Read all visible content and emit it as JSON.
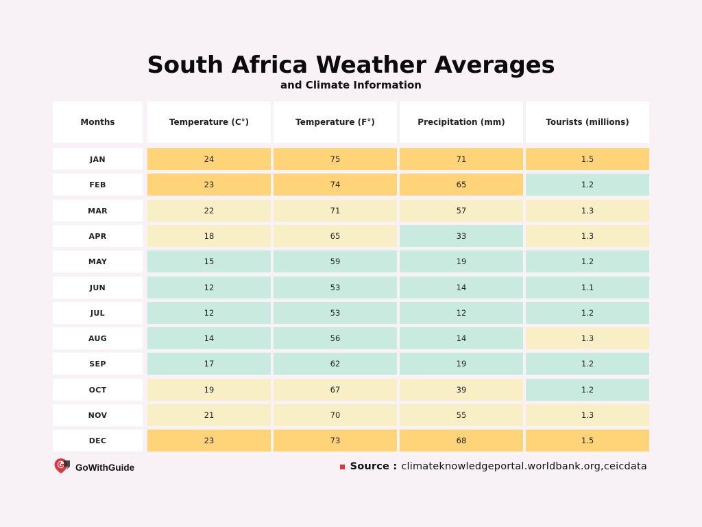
{
  "title": "South Africa Weather Averages",
  "subtitle": "and Climate Information",
  "colors": {
    "orange": "#ffd479",
    "yellow": "#f8efc6",
    "mint": "#c9eadf",
    "header_bg": "#ffffff",
    "page_bg": "#f8f2f6",
    "logo_red": "#d9383f"
  },
  "chart_data": {
    "type": "table",
    "columns": [
      "Months",
      "Temperature (C°)",
      "Temperature (F°)",
      "Precipitation (mm)",
      "Tourists (millions)"
    ],
    "rows": [
      {
        "month": "JAN",
        "values": [
          "24",
          "75",
          "71",
          "1.5"
        ],
        "colors": [
          "orange",
          "orange",
          "orange",
          "orange"
        ]
      },
      {
        "month": "FEB",
        "values": [
          "23",
          "74",
          "65",
          "1.2"
        ],
        "colors": [
          "orange",
          "orange",
          "orange",
          "mint"
        ]
      },
      {
        "month": "MAR",
        "values": [
          "22",
          "71",
          "57",
          "1.3"
        ],
        "colors": [
          "yellow",
          "yellow",
          "yellow",
          "yellow"
        ]
      },
      {
        "month": "APR",
        "values": [
          "18",
          "65",
          "33",
          "1.3"
        ],
        "colors": [
          "yellow",
          "yellow",
          "mint",
          "yellow"
        ]
      },
      {
        "month": "MAY",
        "values": [
          "15",
          "59",
          "19",
          "1.2"
        ],
        "colors": [
          "mint",
          "mint",
          "mint",
          "mint"
        ]
      },
      {
        "month": "JUN",
        "values": [
          "12",
          "53",
          "14",
          "1.1"
        ],
        "colors": [
          "mint",
          "mint",
          "mint",
          "mint"
        ]
      },
      {
        "month": "JUL",
        "values": [
          "12",
          "53",
          "12",
          "1.2"
        ],
        "colors": [
          "mint",
          "mint",
          "mint",
          "mint"
        ]
      },
      {
        "month": "AUG",
        "values": [
          "14",
          "56",
          "14",
          "1.3"
        ],
        "colors": [
          "mint",
          "mint",
          "mint",
          "yellow"
        ]
      },
      {
        "month": "SEP",
        "values": [
          "17",
          "62",
          "19",
          "1.2"
        ],
        "colors": [
          "mint",
          "mint",
          "mint",
          "mint"
        ]
      },
      {
        "month": "OCT",
        "values": [
          "19",
          "67",
          "39",
          "1.2"
        ],
        "colors": [
          "yellow",
          "yellow",
          "yellow",
          "mint"
        ]
      },
      {
        "month": "NOV",
        "values": [
          "21",
          "70",
          "55",
          "1.3"
        ],
        "colors": [
          "yellow",
          "yellow",
          "yellow",
          "yellow"
        ]
      },
      {
        "month": "DEC",
        "values": [
          "23",
          "73",
          "68",
          "1.5"
        ],
        "colors": [
          "orange",
          "orange",
          "orange",
          "orange"
        ]
      }
    ]
  },
  "footer": {
    "logo_text": "GoWithGuide",
    "logo_icon": "map-pin-logo-icon",
    "source_label": "Source :",
    "source_text": "climateknowledgeportal.worldbank.org,ceicdata"
  }
}
